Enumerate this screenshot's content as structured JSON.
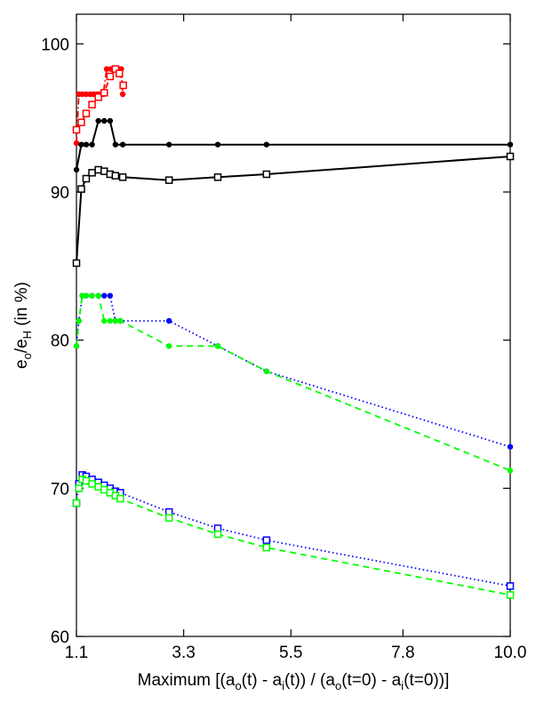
{
  "chart_data": {
    "type": "line",
    "xlabel": "Maximum [(a_o(t) - a_i(t)) / (a_o(t=0) - a_i(t=0))]",
    "ylabel": "e_o/e_H (in %)",
    "xlim": [
      1.1,
      10.0
    ],
    "ylim": [
      60,
      102
    ],
    "xticks": [
      "1.1",
      "3.3",
      "5.5",
      "7.8",
      "10.0"
    ],
    "yticks": [
      "60",
      "70",
      "80",
      "90",
      "100"
    ],
    "grid": false,
    "series": [
      {
        "color": "#ff0000",
        "line": "dashdot",
        "marker": "dot",
        "x": [
          1.1,
          1.15,
          1.22,
          1.3,
          1.38,
          1.45,
          1.52,
          1.58,
          1.65,
          1.72,
          1.8,
          1.87,
          1.92,
          1.97,
          2.02,
          2.05
        ],
        "y": [
          93.3,
          96.6,
          96.6,
          96.6,
          96.6,
          96.6,
          96.6,
          96.6,
          96.6,
          98.3,
          98.3,
          98.3,
          98.3,
          98.3,
          98.3,
          96.6
        ]
      },
      {
        "color": "#ff0000",
        "line": "dashdot",
        "marker": "square",
        "x": [
          1.1,
          1.2,
          1.3,
          1.42,
          1.55,
          1.67,
          1.79,
          1.9,
          1.98,
          2.06
        ],
        "y": [
          94.2,
          94.7,
          95.3,
          95.9,
          96.4,
          96.7,
          97.8,
          98.3,
          98.0,
          97.2
        ]
      },
      {
        "color": "#000000",
        "line": "solid",
        "marker": "dot",
        "x": [
          1.1,
          1.2,
          1.3,
          1.42,
          1.55,
          1.67,
          1.79,
          1.9,
          2.05,
          3.0,
          4.0,
          5.0,
          10.0
        ],
        "y": [
          91.5,
          93.2,
          93.2,
          93.2,
          94.8,
          94.8,
          94.8,
          93.2,
          93.2,
          93.2,
          93.2,
          93.2,
          93.2
        ]
      },
      {
        "color": "#000000",
        "line": "solid",
        "marker": "square",
        "x": [
          1.1,
          1.2,
          1.3,
          1.42,
          1.55,
          1.67,
          1.79,
          1.9,
          2.05,
          3.0,
          4.0,
          5.0,
          10.0
        ],
        "y": [
          85.2,
          90.2,
          90.9,
          91.3,
          91.5,
          91.4,
          91.2,
          91.1,
          91.0,
          90.8,
          91.0,
          91.2,
          92.4
        ]
      },
      {
        "color": "#0000ff",
        "line": "dotted",
        "marker": "dot",
        "x": [
          1.1,
          1.15,
          1.22,
          1.3,
          1.42,
          1.55,
          1.67,
          1.79,
          1.9,
          2.0,
          3.0,
          4.0,
          5.0,
          10.0
        ],
        "y": [
          79.6,
          81.3,
          83.0,
          83.0,
          83.0,
          83.0,
          83.0,
          83.0,
          81.3,
          81.3,
          81.3,
          79.6,
          77.9,
          72.8
        ]
      },
      {
        "color": "#00ff00",
        "line": "dashed",
        "marker": "dot",
        "x": [
          1.1,
          1.15,
          1.22,
          1.3,
          1.42,
          1.55,
          1.67,
          1.79,
          1.9,
          2.0,
          3.0,
          4.0,
          5.0,
          10.0
        ],
        "y": [
          79.6,
          81.3,
          83.0,
          83.0,
          83.0,
          83.0,
          81.3,
          81.3,
          81.3,
          81.3,
          79.6,
          79.6,
          77.9,
          71.2
        ]
      },
      {
        "color": "#0000ff",
        "line": "dotted",
        "marker": "square",
        "x": [
          1.1,
          1.15,
          1.22,
          1.3,
          1.42,
          1.55,
          1.67,
          1.79,
          1.9,
          2.0,
          3.0,
          4.0,
          5.0,
          10.0
        ],
        "y": [
          69.0,
          70.3,
          70.9,
          70.8,
          70.6,
          70.4,
          70.2,
          70.0,
          69.8,
          69.7,
          68.4,
          67.3,
          66.5,
          63.4
        ]
      },
      {
        "color": "#00ff00",
        "line": "dashed",
        "marker": "square",
        "x": [
          1.1,
          1.15,
          1.22,
          1.3,
          1.42,
          1.55,
          1.67,
          1.79,
          1.9,
          2.0,
          3.0,
          4.0,
          5.0,
          10.0
        ],
        "y": [
          69.0,
          70.0,
          70.6,
          70.5,
          70.3,
          70.1,
          69.9,
          69.7,
          69.5,
          69.3,
          68.0,
          66.9,
          66.0,
          62.8
        ]
      }
    ]
  }
}
